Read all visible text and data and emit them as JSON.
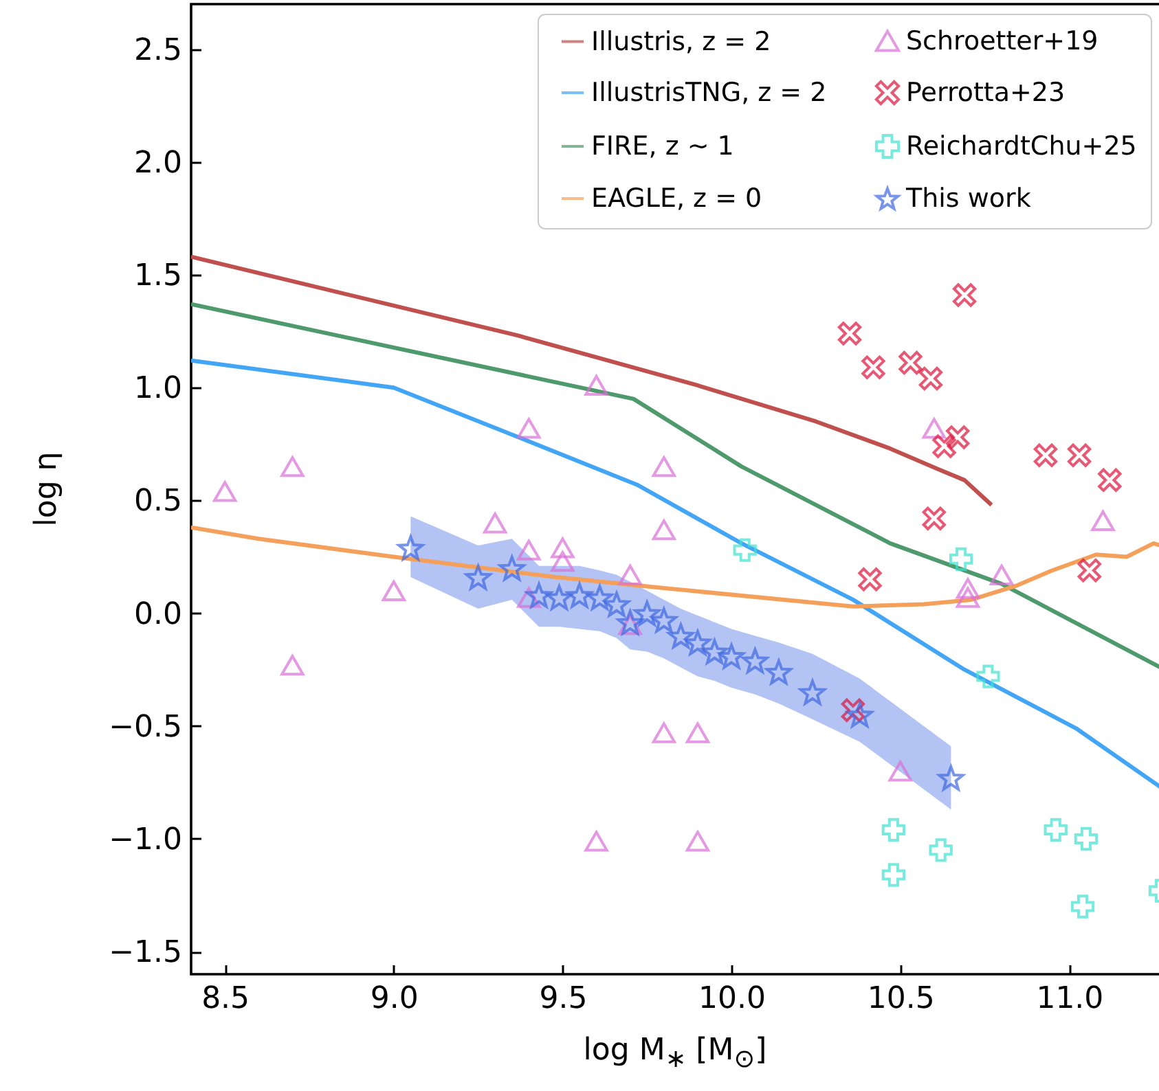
{
  "chart_data": {
    "type": "scatter",
    "xlabel": "log M$_{∗}$ [M$_{⊙}$]",
    "ylabel": "log η",
    "xlim": [
      8.4,
      11.27
    ],
    "ylim": [
      -1.6,
      2.7
    ],
    "xticks": [
      8.5,
      {
        "value": 9,
        "label": "9.0"
      },
      9.5,
      {
        "value": 10,
        "label": "10.0"
      },
      10.5,
      {
        "value": 11,
        "label": "11.0"
      }
    ],
    "yticks": [
      {
        "value": -1.5,
        "label": "−1.5"
      },
      {
        "value": -1,
        "label": "−1.0"
      },
      {
        "value": -0.5,
        "label": "−0.5"
      },
      {
        "value": 0,
        "label": "0.0"
      },
      0.5,
      {
        "value": 1,
        "label": "1.0"
      },
      1.5,
      {
        "value": 2,
        "label": "2.0"
      },
      2.5
    ],
    "grid": false,
    "legend": "top right",
    "series": [
      {
        "name": "Illustris, z = 2",
        "type": "line",
        "color": "#c0504d",
        "x": [
          8.4,
          9.37,
          9.9,
          10.25,
          10.47,
          10.61,
          10.69,
          10.77
        ],
        "values": [
          1.58,
          1.23,
          1.01,
          0.85,
          0.73,
          0.64,
          0.59,
          0.48
        ]
      },
      {
        "name": "IllustrisTNG, z = 2",
        "type": "line",
        "color": "#42a5f5",
        "x": [
          8.4,
          9.0,
          9.37,
          9.72,
          10.03,
          10.36,
          10.69,
          11.02,
          11.27
        ],
        "values": [
          1.12,
          1.0,
          0.78,
          0.57,
          0.31,
          0.06,
          -0.25,
          -0.51,
          -0.77
        ]
      },
      {
        "name": "FIRE, z ∼ 1",
        "type": "line",
        "color": "#4f9a6c",
        "x": [
          8.4,
          9.71,
          10.03,
          10.47,
          10.8,
          11.27
        ],
        "values": [
          1.37,
          0.95,
          0.65,
          0.31,
          0.13,
          -0.24
        ]
      },
      {
        "name": "EAGLE, z = 0",
        "type": "line",
        "color": "#f5a05a",
        "x": [
          8.4,
          8.6,
          9.0,
          9.48,
          9.81,
          10.36,
          10.57,
          10.71,
          10.84,
          10.95,
          11.08,
          11.17,
          11.25,
          11.27
        ],
        "values": [
          0.38,
          0.33,
          0.25,
          0.16,
          0.11,
          0.03,
          0.04,
          0.06,
          0.12,
          0.19,
          0.26,
          0.25,
          0.31,
          0.3
        ]
      },
      {
        "name": "Schroetter+19",
        "type": "scatter",
        "marker": "triangle",
        "color": "#da70d6",
        "x": [
          8.5,
          8.7,
          8.7,
          9.0,
          9.3,
          9.4,
          9.4,
          9.4,
          9.5,
          9.5,
          9.6,
          9.6,
          9.7,
          9.7,
          9.8,
          9.8,
          9.8,
          9.9,
          9.9,
          10.5,
          10.6,
          10.7,
          10.7,
          10.8,
          11.1
        ],
        "values": [
          0.54,
          0.65,
          -0.23,
          0.1,
          0.4,
          0.82,
          0.28,
          0.07,
          0.29,
          0.23,
          1.01,
          -1.01,
          0.17,
          -0.05,
          0.65,
          0.37,
          -0.53,
          -0.53,
          -1.01,
          -0.7,
          0.82,
          0.11,
          0.07,
          0.17,
          0.41
        ]
      },
      {
        "name": "Perrotta+23",
        "type": "scatter",
        "marker": "x",
        "color": "#dc143c",
        "x": [
          10.35,
          10.42,
          10.53,
          10.59,
          10.69,
          10.63,
          10.67,
          10.6,
          10.41,
          10.93,
          11.03,
          11.12,
          11.06,
          10.36
        ],
        "values": [
          1.24,
          1.09,
          1.11,
          1.04,
          1.41,
          0.74,
          0.78,
          0.42,
          0.15,
          0.7,
          0.7,
          0.59,
          0.19,
          -0.43
        ]
      },
      {
        "name": "ReichardtChu+25",
        "type": "scatter",
        "marker": "cross",
        "color": "#40e0d0",
        "x": [
          10.04,
          10.68,
          10.76,
          10.48,
          10.48,
          10.62,
          10.96,
          11.05,
          11.04,
          11.27
        ],
        "values": [
          0.28,
          0.24,
          -0.28,
          -0.96,
          -1.16,
          -1.05,
          -0.96,
          -1.0,
          -1.3,
          -1.23
        ]
      },
      {
        "name": "This work",
        "type": "scatter",
        "marker": "star",
        "color": "#4169e1",
        "x": [
          9.05,
          9.25,
          9.35,
          9.43,
          9.49,
          9.55,
          9.61,
          9.66,
          9.7,
          9.75,
          9.8,
          9.85,
          9.9,
          9.95,
          10.0,
          10.07,
          10.14,
          10.24,
          10.38,
          10.65
        ],
        "values": [
          0.29,
          0.16,
          0.2,
          0.08,
          0.07,
          0.08,
          0.07,
          0.04,
          -0.04,
          0.0,
          -0.03,
          -0.1,
          -0.13,
          -0.17,
          -0.19,
          -0.21,
          -0.26,
          -0.35,
          -0.45,
          -0.73
        ],
        "lower": [
          0.16,
          0.02,
          0.06,
          -0.06,
          -0.06,
          -0.07,
          -0.08,
          -0.11,
          -0.16,
          -0.17,
          -0.2,
          -0.24,
          -0.28,
          -0.3,
          -0.33,
          -0.36,
          -0.4,
          -0.47,
          -0.57,
          -0.87
        ],
        "upper": [
          0.43,
          0.3,
          0.33,
          0.21,
          0.21,
          0.21,
          0.19,
          0.17,
          0.14,
          0.1,
          0.06,
          0.02,
          -0.01,
          -0.04,
          -0.07,
          -0.1,
          -0.13,
          -0.18,
          -0.29,
          -0.59
        ]
      }
    ]
  }
}
